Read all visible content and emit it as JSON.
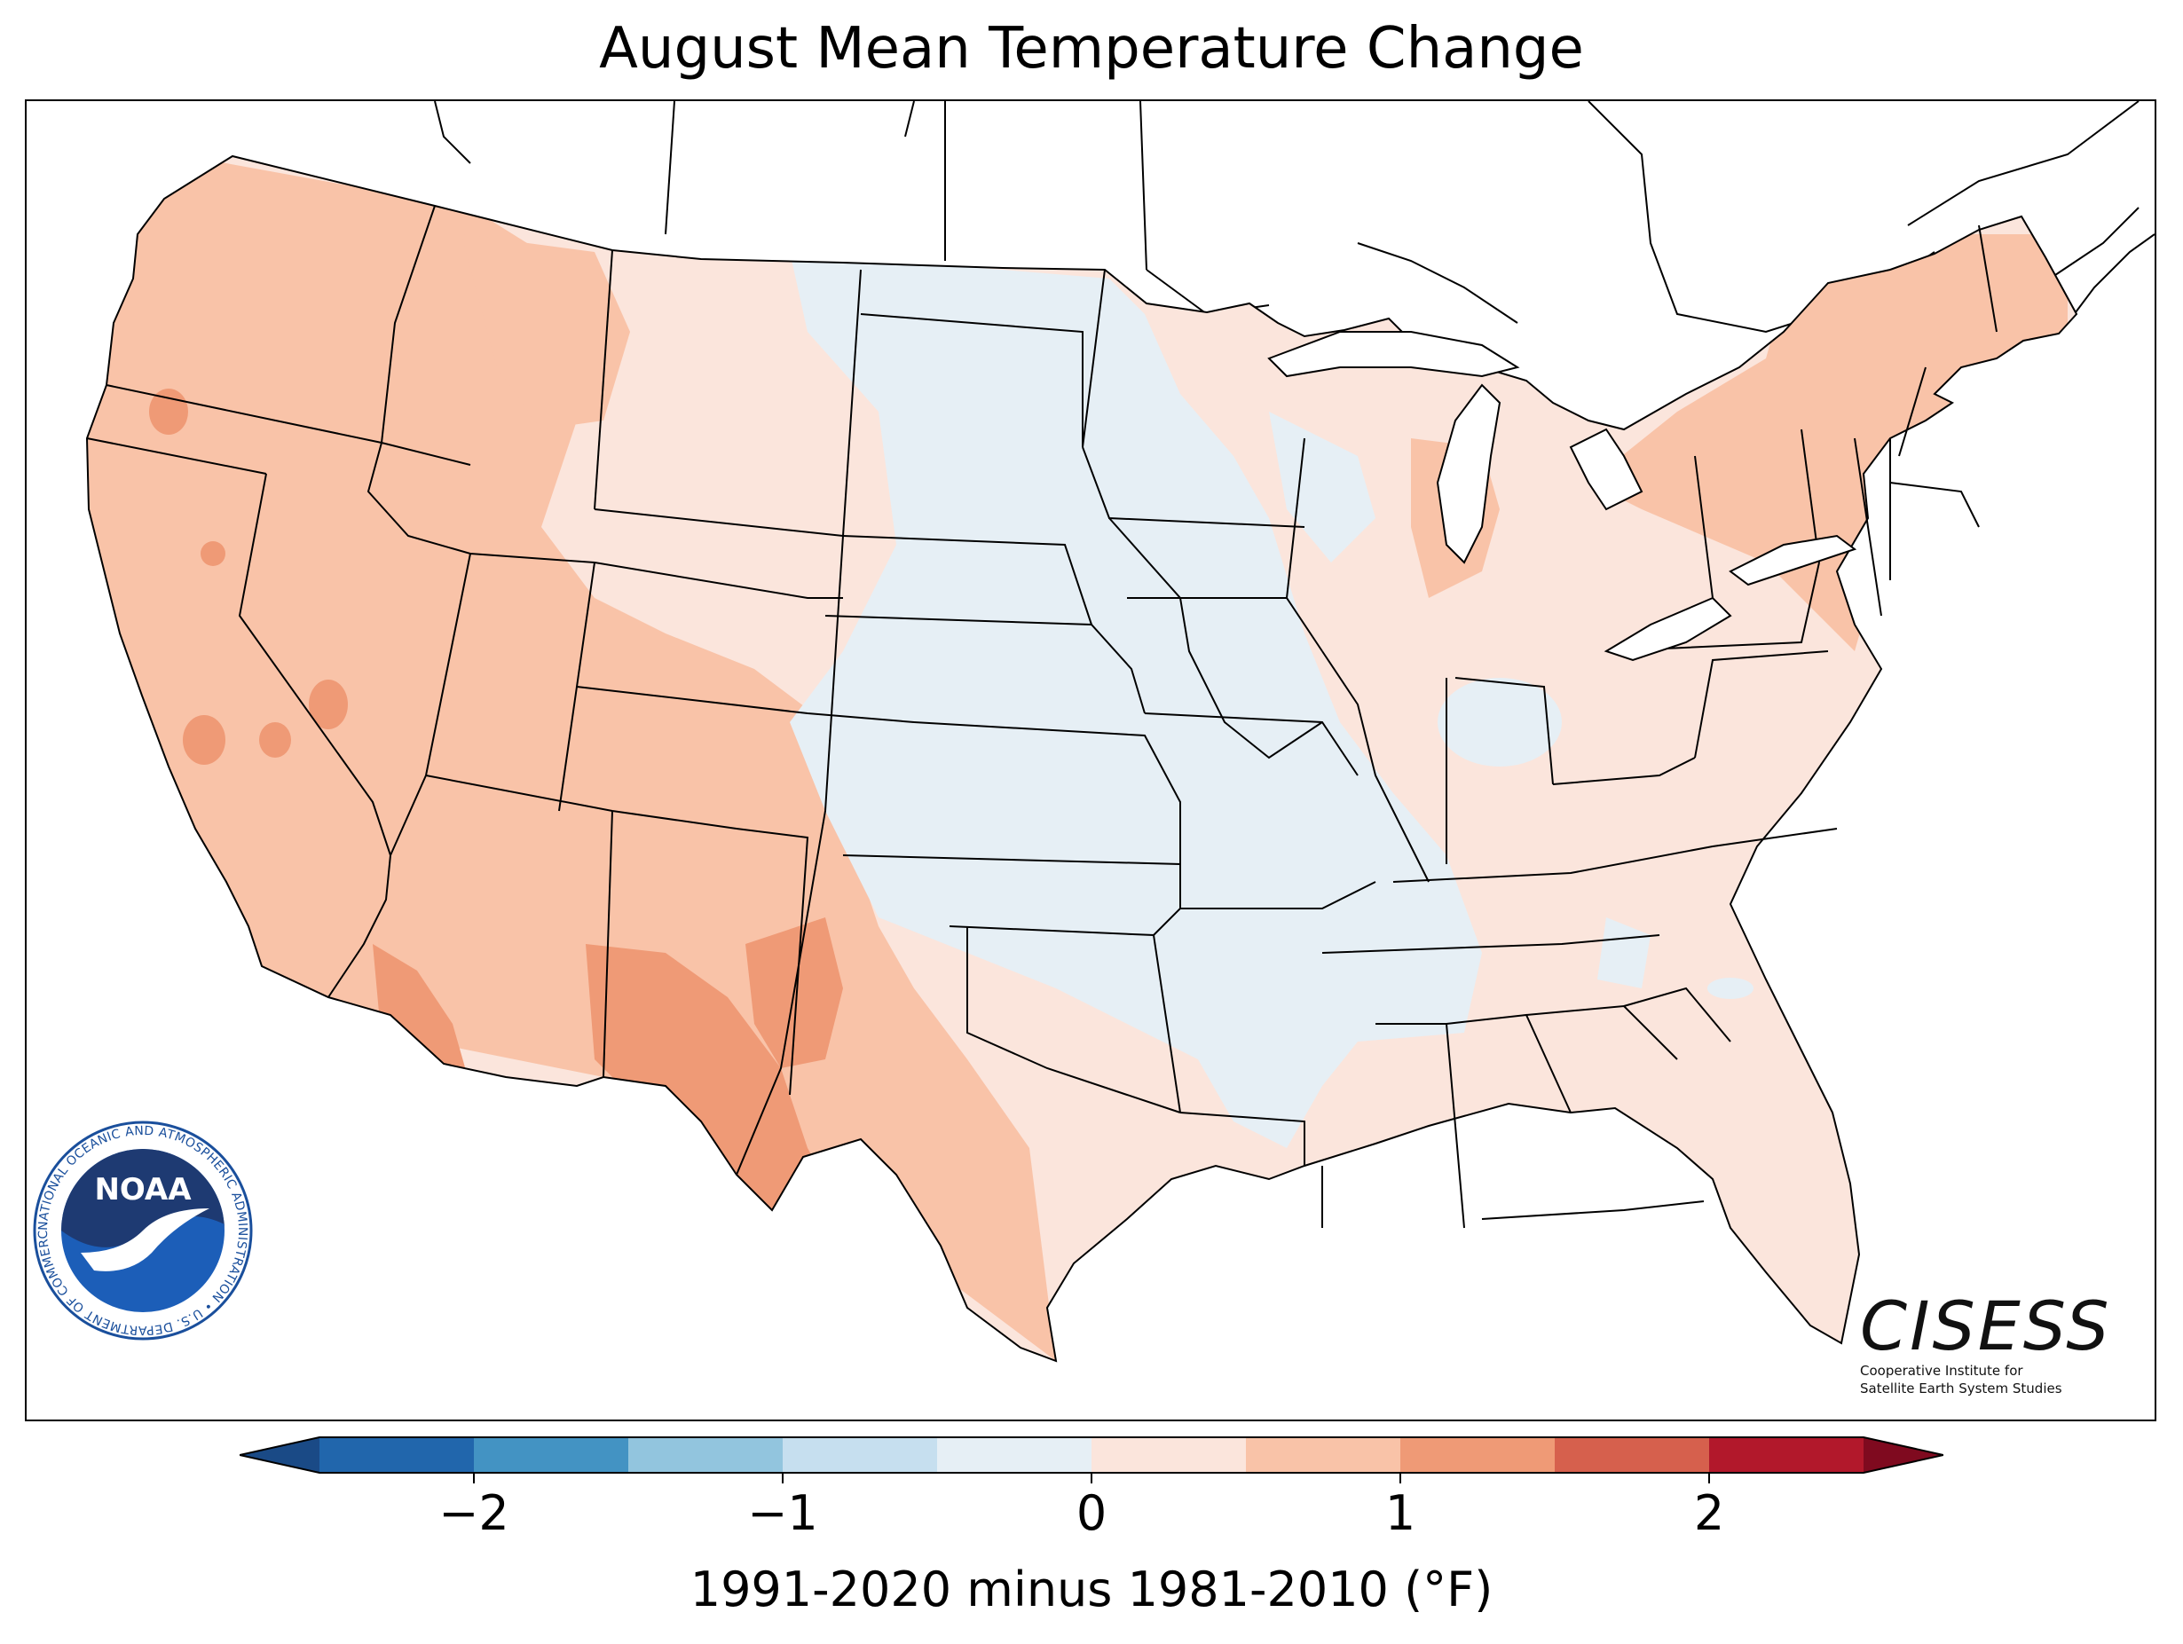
{
  "title": "August Mean Temperature Change",
  "colorbar": {
    "label": "1991-2020 minus 1981-2010 (°F)",
    "min": -2.5,
    "max": 2.5,
    "step": 0.5,
    "extend": "both",
    "ticks": [
      {
        "value": -2,
        "label": "−2"
      },
      {
        "value": -1,
        "label": "−1"
      },
      {
        "value": 0,
        "label": "0"
      },
      {
        "value": 1,
        "label": "1"
      },
      {
        "value": 2,
        "label": "2"
      }
    ],
    "colors": [
      "#2166ac",
      "#4393c3",
      "#92c5de",
      "#c6dfef",
      "#e6eff5",
      "#fbe5dc",
      "#f9c3a8",
      "#ef9a76",
      "#d6604d",
      "#b2182b"
    ],
    "under_color": "#1a4a86",
    "over_color": "#7f0a1f"
  },
  "logos": {
    "noaa": {
      "emblem_text": "NOAA",
      "ring_text": "NATIONAL OCEANIC AND ATMOSPHERIC ADMINISTRATION • U.S. DEPARTMENT OF COMMERCE •"
    },
    "cisess": {
      "name": "CISESS",
      "line1": "Cooperative Institute for",
      "line2": "Satellite Earth System Studies"
    }
  },
  "map": {
    "region": "Contiguous United States",
    "colors": {
      "land_slight_warm": "#fbe5dc",
      "land_warm": "#f9c3a8",
      "land_hot": "#ef9a76",
      "land_cool": "#e6eff5",
      "border": "#000000",
      "water": "#ffffff"
    }
  }
}
